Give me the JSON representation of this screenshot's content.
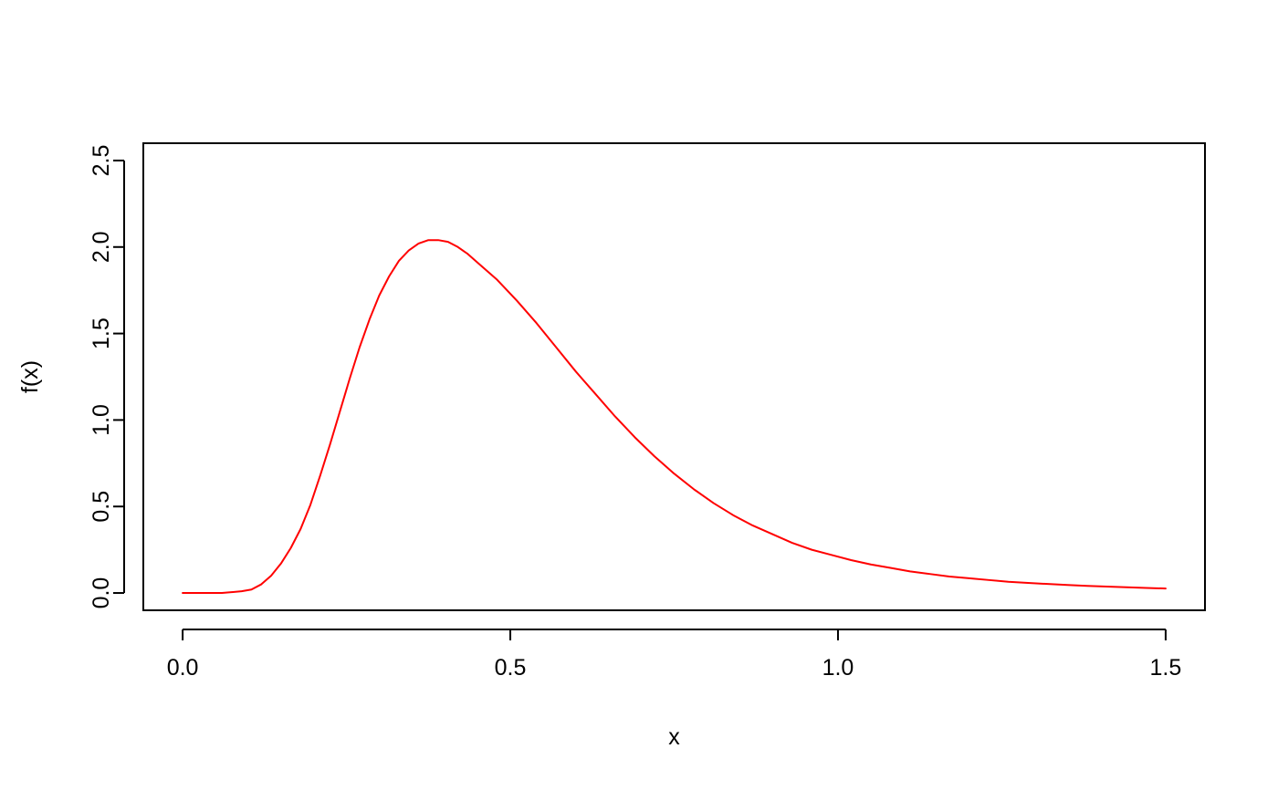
{
  "chart_data": {
    "type": "line",
    "title": "",
    "xlabel": "x",
    "ylabel": "f(x)",
    "xlim": [
      -0.06,
      1.56
    ],
    "ylim": [
      -0.1,
      2.6
    ],
    "x_ticks": [
      0.0,
      0.5,
      1.0,
      1.5
    ],
    "x_tick_labels": [
      "0.0",
      "0.5",
      "1.0",
      "1.5"
    ],
    "y_ticks": [
      0.0,
      0.5,
      1.0,
      1.5,
      2.0,
      2.5
    ],
    "y_tick_labels": [
      "0.0",
      "0.5",
      "1.0",
      "1.5",
      "2.0",
      "2.5"
    ],
    "grid": false,
    "legend": "none",
    "series": [
      {
        "color": "#ff0000",
        "x": [
          0.0,
          0.03,
          0.06,
          0.09,
          0.105,
          0.12,
          0.135,
          0.15,
          0.165,
          0.18,
          0.195,
          0.21,
          0.225,
          0.24,
          0.255,
          0.27,
          0.285,
          0.3,
          0.315,
          0.33,
          0.345,
          0.36,
          0.375,
          0.39,
          0.405,
          0.42,
          0.435,
          0.45,
          0.48,
          0.51,
          0.54,
          0.57,
          0.6,
          0.63,
          0.66,
          0.69,
          0.72,
          0.75,
          0.78,
          0.81,
          0.84,
          0.87,
          0.9,
          0.93,
          0.96,
          0.99,
          1.02,
          1.05,
          1.08,
          1.11,
          1.14,
          1.17,
          1.2,
          1.23,
          1.26,
          1.29,
          1.32,
          1.35,
          1.38,
          1.41,
          1.44,
          1.47,
          1.5
        ],
        "y": [
          0.0,
          0.0,
          0.0,
          0.01,
          0.02,
          0.05,
          0.1,
          0.17,
          0.26,
          0.37,
          0.51,
          0.68,
          0.86,
          1.05,
          1.24,
          1.42,
          1.58,
          1.72,
          1.83,
          1.92,
          1.98,
          2.02,
          2.04,
          2.04,
          2.03,
          2.0,
          1.96,
          1.91,
          1.81,
          1.69,
          1.56,
          1.42,
          1.28,
          1.15,
          1.02,
          0.9,
          0.79,
          0.69,
          0.6,
          0.52,
          0.45,
          0.39,
          0.34,
          0.29,
          0.25,
          0.22,
          0.19,
          0.165,
          0.145,
          0.125,
          0.11,
          0.095,
          0.085,
          0.075,
          0.065,
          0.058,
          0.052,
          0.046,
          0.041,
          0.037,
          0.033,
          0.029,
          0.026
        ]
      }
    ]
  }
}
